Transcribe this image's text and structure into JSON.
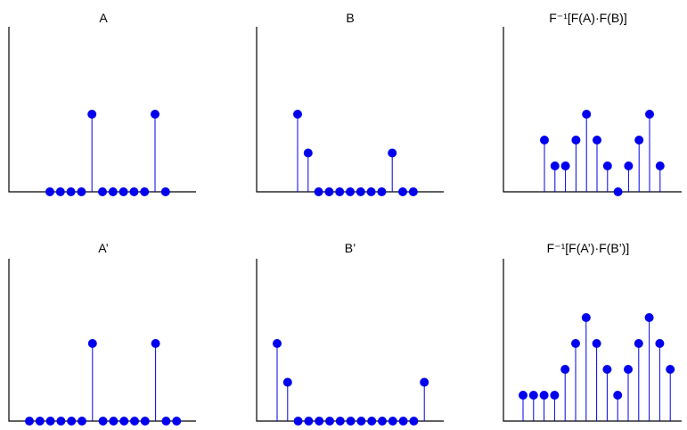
{
  "chart_data": [
    {
      "type": "stem",
      "title": "A",
      "x": [
        0,
        1,
        2,
        3,
        4,
        5,
        6,
        7,
        8,
        9,
        10,
        11
      ],
      "values": [
        0,
        0,
        0,
        0,
        2,
        0,
        0,
        0,
        0,
        0,
        2,
        0
      ],
      "ylim": [
        0,
        3
      ]
    },
    {
      "type": "stem",
      "title": "B",
      "x": [
        0,
        1,
        2,
        3,
        4,
        5,
        6,
        7,
        8,
        9,
        10,
        11
      ],
      "values": [
        2,
        1,
        0,
        0,
        0,
        0,
        0,
        0,
        0,
        1,
        0,
        0
      ],
      "ylim": [
        0,
        3
      ]
    },
    {
      "type": "stem",
      "title": "F⁻¹[F(A)·F(B)]",
      "x": [
        0,
        1,
        2,
        3,
        4,
        5,
        6,
        7,
        8,
        9,
        10,
        11
      ],
      "values": [
        1,
        0,
        0,
        1,
        2,
        1,
        0,
        -1,
        0,
        1,
        2,
        0
      ],
      "ylim": [
        -1,
        4
      ]
    },
    {
      "type": "stem",
      "title": "A’",
      "x": [
        0,
        1,
        2,
        3,
        4,
        5,
        6,
        7,
        8,
        9,
        10,
        11,
        12,
        13,
        14
      ],
      "values": [
        0,
        0,
        0,
        0,
        0,
        0,
        2,
        0,
        0,
        0,
        0,
        0,
        2,
        0,
        0
      ],
      "ylim": [
        0,
        3
      ]
    },
    {
      "type": "stem",
      "title": "B’",
      "x": [
        0,
        1,
        2,
        3,
        4,
        5,
        6,
        7,
        8,
        9,
        10,
        11,
        12,
        13,
        14
      ],
      "values": [
        2,
        1,
        0,
        0,
        0,
        0,
        0,
        0,
        0,
        0,
        0,
        0,
        0,
        0,
        1
      ],
      "ylim": [
        0,
        3
      ]
    },
    {
      "type": "stem",
      "title": "F⁻¹[F(A’)·F(B’)]",
      "x": [
        0,
        1,
        2,
        3,
        4,
        5,
        6,
        7,
        8,
        9,
        10,
        11,
        12,
        13,
        14
      ],
      "values": [
        0,
        0,
        0,
        0,
        1,
        2,
        3,
        2,
        1,
        0,
        1,
        2,
        3,
        2,
        1
      ],
      "ylim": [
        0,
        4
      ]
    }
  ]
}
